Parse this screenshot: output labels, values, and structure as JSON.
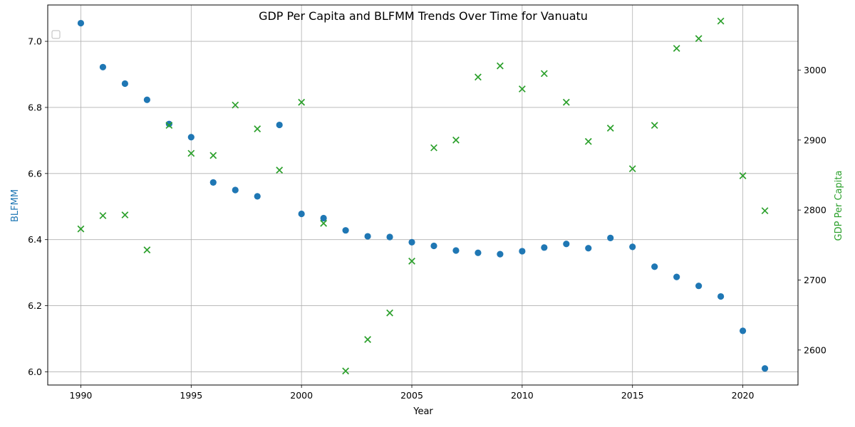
{
  "chart_data": {
    "type": "scatter",
    "title": "GDP Per Capita and BLFMM Trends Over Time for Vanuatu",
    "xlabel": "Year",
    "ylabel_left": "BLFMM",
    "ylabel_right": "GDP Per Capita",
    "xlim": [
      1988.5,
      2022.5
    ],
    "ylim_left": [
      5.96,
      7.11
    ],
    "ylim_right": [
      2550,
      3093
    ],
    "x_ticks": [
      1990,
      1995,
      2000,
      2005,
      2010,
      2015,
      2020
    ],
    "y_ticks_left": [
      6.0,
      6.2,
      6.4,
      6.6,
      6.8,
      7.0
    ],
    "y_ticks_right": [
      2600,
      2700,
      2800,
      2900,
      3000
    ],
    "grid": true,
    "legend": "top-left (empty)",
    "series": [
      {
        "axis": "left",
        "marker": "circle",
        "color": "#1f77b4",
        "x": [
          1990,
          1991,
          1992,
          1993,
          1994,
          1995,
          1996,
          1997,
          1998,
          1999,
          2000,
          2001,
          2002,
          2003,
          2004,
          2005,
          2006,
          2007,
          2008,
          2009,
          2010,
          2011,
          2012,
          2013,
          2014,
          2015,
          2016,
          2017,
          2018,
          2019,
          2020,
          2021
        ],
        "values": [
          7.055,
          6.922,
          6.872,
          6.823,
          6.75,
          6.71,
          6.573,
          6.55,
          6.531,
          6.747,
          6.478,
          6.465,
          6.428,
          6.41,
          6.408,
          6.392,
          6.381,
          6.367,
          6.36,
          6.356,
          6.365,
          6.376,
          6.387,
          6.374,
          6.405,
          6.378,
          6.318,
          6.287,
          6.26,
          6.228,
          6.124,
          6.01
        ]
      },
      {
        "axis": "right",
        "marker": "x",
        "color": "#2ca02c",
        "x": [
          1990,
          1991,
          1992,
          1993,
          1994,
          1995,
          1996,
          1997,
          1998,
          1999,
          2000,
          2001,
          2002,
          2003,
          2004,
          2005,
          2006,
          2007,
          2008,
          2009,
          2010,
          2011,
          2012,
          2013,
          2014,
          2015,
          2016,
          2017,
          2018,
          2019,
          2020,
          2021
        ],
        "values": [
          2773,
          2792,
          2793,
          2743,
          2921,
          2881,
          2878,
          2950,
          2916,
          2857,
          2954,
          2781,
          2570,
          2615,
          2653,
          2727,
          2889,
          2900,
          2990,
          3006,
          2973,
          2995,
          2954,
          2898,
          2917,
          2859,
          2921,
          3031,
          3045,
          3070,
          2849,
          2799
        ]
      }
    ]
  }
}
